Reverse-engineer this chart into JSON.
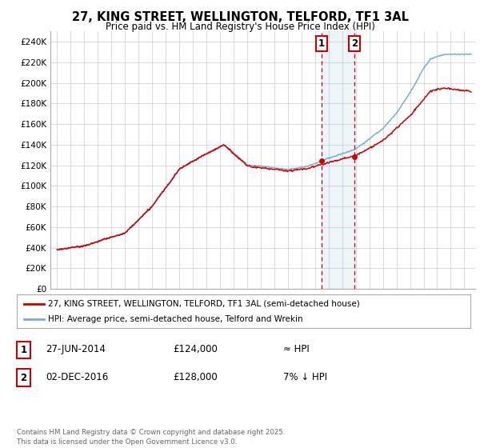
{
  "title_line1": "27, KING STREET, WELLINGTON, TELFORD, TF1 3AL",
  "title_line2": "Price paid vs. HM Land Registry's House Price Index (HPI)",
  "ylim": [
    0,
    250000
  ],
  "yticks": [
    0,
    20000,
    40000,
    60000,
    80000,
    100000,
    120000,
    140000,
    160000,
    180000,
    200000,
    220000,
    240000
  ],
  "ytick_labels": [
    "£0",
    "£20K",
    "£40K",
    "£60K",
    "£80K",
    "£100K",
    "£120K",
    "£140K",
    "£160K",
    "£180K",
    "£200K",
    "£220K",
    "£240K"
  ],
  "hpi_color": "#7aadd4",
  "price_color": "#cc0000",
  "background_color": "#ffffff",
  "grid_color": "#cccccc",
  "sale1_date": 2014.49,
  "sale1_price": 124000,
  "sale1_label": "1",
  "sale2_date": 2016.92,
  "sale2_price": 128000,
  "sale2_label": "2",
  "legend1_text": "27, KING STREET, WELLINGTON, TELFORD, TF1 3AL (semi-detached house)",
  "legend2_text": "HPI: Average price, semi-detached house, Telford and Wrekin",
  "table_row1": [
    "1",
    "27-JUN-2014",
    "£124,000",
    "≈ HPI"
  ],
  "table_row2": [
    "2",
    "02-DEC-2016",
    "£128,000",
    "7% ↓ HPI"
  ],
  "footnote": "Contains HM Land Registry data © Crown copyright and database right 2025.\nThis data is licensed under the Open Government Licence v3.0.",
  "xmin": 1994.5,
  "xmax": 2025.8
}
